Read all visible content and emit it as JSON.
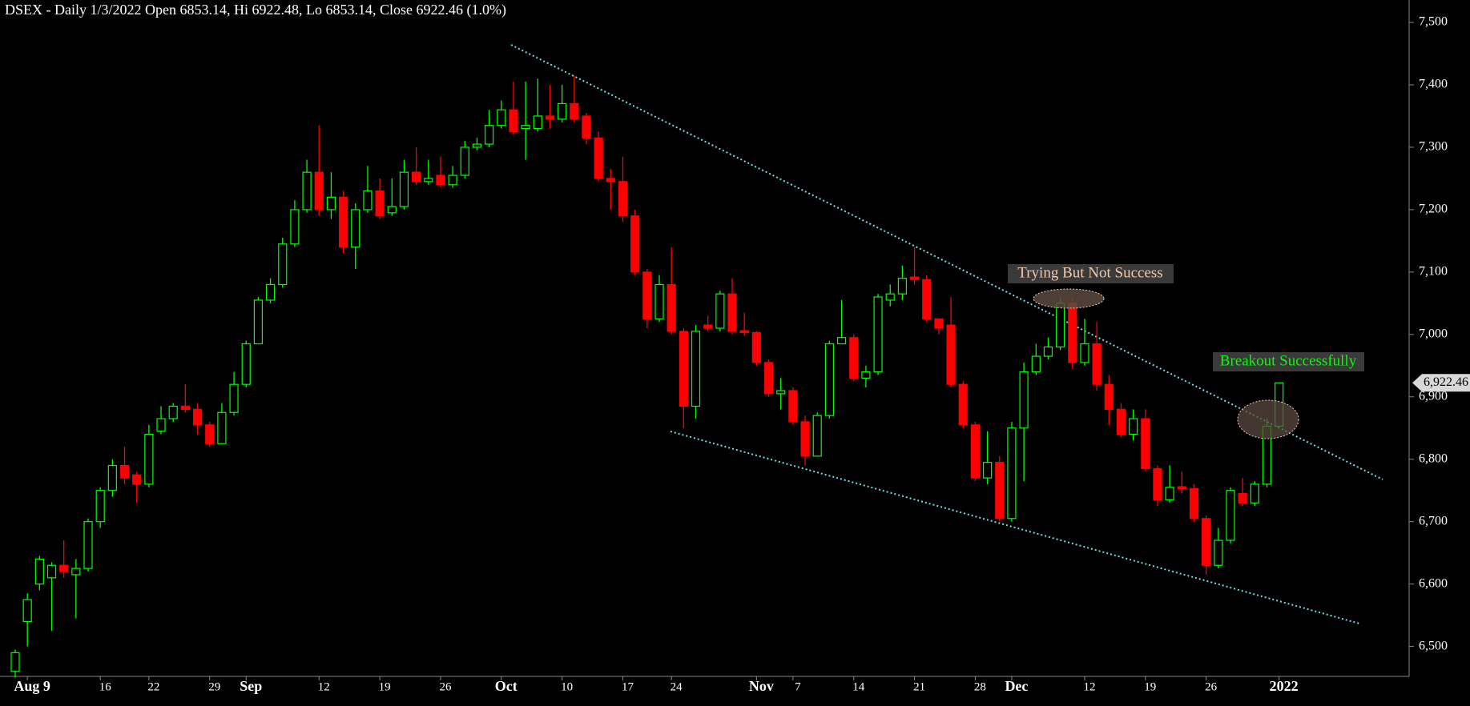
{
  "chart_data": {
    "type": "candlestick",
    "title": "DSEX - Daily 1/3/2022 Open 6853.14, Hi 6922.48, Lo 6853.14, Close 6922.46 (1.0%)",
    "up_color": "#00ff00",
    "down_color": "#ff0000",
    "annotations": [
      "Trying But Not Success",
      "Breakout Successfully"
    ],
    "last_price_label": "6,922.46",
    "ylim": [
      6452,
      7536
    ],
    "yticks": [
      {
        "value": 6500,
        "label": "6,500"
      },
      {
        "value": 6600,
        "label": "6,600"
      },
      {
        "value": 6700,
        "label": "6,700"
      },
      {
        "value": 6800,
        "label": "6,800"
      },
      {
        "value": 6900,
        "label": "6,900"
      },
      {
        "value": 7000,
        "label": "7,000"
      },
      {
        "value": 7100,
        "label": "7,100"
      },
      {
        "value": 7200,
        "label": "7,200"
      },
      {
        "value": 7300,
        "label": "7,300"
      },
      {
        "value": 7400,
        "label": "7,400"
      },
      {
        "value": 7500,
        "label": "7,500"
      }
    ],
    "categories": [
      null,
      "Aug 9",
      null,
      null,
      null,
      null,
      null,
      "16",
      null,
      null,
      null,
      "22",
      null,
      null,
      null,
      null,
      "29",
      null,
      null,
      "Sep",
      null,
      null,
      null,
      null,
      null,
      "12",
      null,
      null,
      null,
      null,
      "19",
      null,
      null,
      null,
      null,
      "26",
      null,
      null,
      null,
      null,
      "Oct",
      null,
      null,
      null,
      null,
      "10",
      null,
      null,
      null,
      null,
      "17",
      null,
      null,
      null,
      "24",
      null,
      null,
      null,
      null,
      null,
      null,
      "Nov",
      null,
      null,
      "7",
      null,
      null,
      null,
      null,
      "14",
      null,
      null,
      null,
      null,
      "21",
      null,
      null,
      null,
      null,
      "28",
      null,
      null,
      "Dec",
      null,
      null,
      null,
      null,
      null,
      "12",
      null,
      null,
      null,
      null,
      "19",
      null,
      null,
      null,
      null,
      "26",
      null,
      null,
      null,
      null,
      null,
      "2022"
    ],
    "open": [
      6460,
      6540,
      6600,
      6610,
      6630,
      6615,
      6625,
      6700,
      6750,
      6790,
      6775,
      6760,
      6845,
      6865,
      6885,
      6880,
      6855,
      6825,
      6875,
      6920,
      6985,
      7055,
      7080,
      7145,
      7200,
      7260,
      7200,
      7220,
      7140,
      7200,
      7230,
      7195,
      7205,
      7260,
      7245,
      7255,
      7240,
      7255,
      7300,
      7305,
      7335,
      7360,
      7330,
      7330,
      7350,
      7345,
      7370,
      7350,
      7315,
      7250,
      7245,
      7190,
      7100,
      7025,
      7080,
      7005,
      6885,
      7015,
      7010,
      7065,
      7006,
      7003,
      6955,
      6905,
      6910,
      6860,
      6805,
      6870,
      6985,
      6995,
      6930,
      6940,
      7055,
      7065,
      7092,
      7088,
      7025,
      7015,
      6920,
      6855,
      6770,
      6795,
      6705,
      6850,
      6940,
      6965,
      6980,
      7050,
      6955,
      6985,
      6920,
      6880,
      6840,
      6865,
      6785,
      6735,
      6756,
      6753,
      6705,
      6630,
      6670,
      6745,
      6730,
      6760,
      6853.14
    ],
    "high": [
      6495,
      6585,
      6645,
      6635,
      6670,
      6640,
      6705,
      6755,
      6800,
      6820,
      6780,
      6855,
      6885,
      6890,
      6920,
      6890,
      6860,
      6890,
      6940,
      6990,
      7060,
      7090,
      7155,
      7215,
      7280,
      7335,
      7260,
      7230,
      7210,
      7270,
      7250,
      7250,
      7280,
      7300,
      7280,
      7285,
      7270,
      7310,
      7315,
      7360,
      7375,
      7405,
      7405,
      7410,
      7400,
      7400,
      7415,
      7355,
      7325,
      7265,
      7285,
      7200,
      7105,
      7095,
      7140,
      7010,
      7015,
      7030,
      7070,
      7090,
      7035,
      7005,
      6960,
      6930,
      6915,
      6870,
      6875,
      6990,
      7055,
      7000,
      6950,
      7065,
      7080,
      7110,
      7140,
      7095,
      7025,
      7060,
      6925,
      6860,
      6845,
      6805,
      6860,
      6955,
      6985,
      6995,
      7060,
      7060,
      7025,
      7020,
      6935,
      6890,
      6880,
      6880,
      6790,
      6790,
      6780,
      6760,
      6710,
      6690,
      6755,
      6770,
      6765,
      6865,
      6922.48
    ],
    "low": [
      6450,
      6500,
      6590,
      6525,
      6610,
      6545,
      6620,
      6690,
      6740,
      6760,
      6730,
      6755,
      6840,
      6860,
      6875,
      6840,
      6820,
      6825,
      6870,
      6915,
      6985,
      7050,
      7075,
      7140,
      7195,
      7190,
      7185,
      7130,
      7105,
      7195,
      7185,
      7190,
      7200,
      7240,
      7240,
      7235,
      7235,
      7250,
      7295,
      7300,
      7330,
      7320,
      7280,
      7325,
      7330,
      7340,
      7340,
      7305,
      7245,
      7200,
      7180,
      7095,
      7010,
      7020,
      7000,
      6850,
      6865,
      7005,
      7005,
      7000,
      6998,
      6950,
      6900,
      6880,
      6855,
      6790,
      6805,
      6865,
      6985,
      6925,
      6915,
      6935,
      7045,
      7055,
      7080,
      7020,
      7000,
      6915,
      6850,
      6765,
      6760,
      6700,
      6700,
      6765,
      6935,
      6960,
      6975,
      6945,
      6950,
      6910,
      6855,
      6835,
      6830,
      6780,
      6725,
      6730,
      6745,
      6700,
      6615,
      6625,
      6665,
      6725,
      6725,
      6755,
      6853.14
    ],
    "close": [
      6490,
      6575,
      6640,
      6630,
      6620,
      6625,
      6700,
      6750,
      6790,
      6770,
      6760,
      6840,
      6865,
      6885,
      6880,
      6855,
      6825,
      6875,
      6920,
      6985,
      7055,
      7080,
      7145,
      7200,
      7260,
      7200,
      7220,
      7140,
      7200,
      7230,
      7190,
      7205,
      7260,
      7245,
      7250,
      7240,
      7255,
      7300,
      7305,
      7335,
      7360,
      7325,
      7335,
      7350,
      7345,
      7370,
      7345,
      7315,
      7250,
      7245,
      7190,
      7100,
      7025,
      7080,
      7005,
      6885,
      7005,
      7010,
      7065,
      7005,
      7003,
      6955,
      6905,
      6910,
      6860,
      6805,
      6870,
      6985,
      6995,
      6930,
      6940,
      7060,
      7065,
      7090,
      7088,
      7025,
      7010,
      6920,
      6855,
      6770,
      6795,
      6705,
      6850,
      6940,
      6965,
      6980,
      7050,
      6955,
      6985,
      6920,
      6880,
      6840,
      6865,
      6785,
      6735,
      6755,
      6753,
      6705,
      6630,
      6670,
      6750,
      6730,
      6760,
      6853,
      6922.46
    ]
  }
}
